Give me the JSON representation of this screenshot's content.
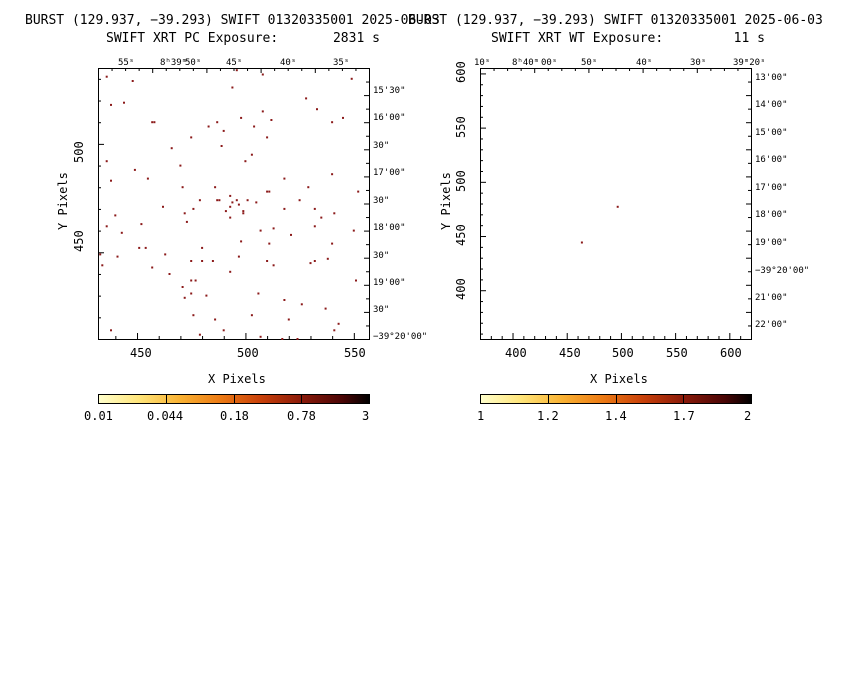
{
  "panels": [
    {
      "title": "BURST (129.937, −39.293) SWIFT 01320335001 2025-06-03",
      "subtitle": "SWIFT XRT PC Exposure:       2831 s",
      "xlabel": "X Pixels",
      "ylabel": "Y Pixels",
      "x_ticks": [
        "450",
        "500",
        "550"
      ],
      "y_ticks": [
        "450",
        "500"
      ],
      "ra_ticks": [
        "55ˢ",
        "8ʰ39ᵐ",
        "45ˢ",
        "40ˢ",
        "35ˢ"
      ],
      "ra_tick_50": "50ˢ",
      "dec_ticks": [
        "15'30\"",
        "16'00\"",
        "30\"",
        "17'00\"",
        "30\"",
        "18'00\"",
        "30\"",
        "19'00\"",
        "30\"",
        "−39°20'00\""
      ],
      "colorbar_ticks": [
        "0.01",
        "0.044",
        "0.18",
        "0.78",
        "3"
      ]
    },
    {
      "title": "BURST (129.937, −39.293) SWIFT 01320335001 2025-06-03",
      "subtitle": "SWIFT XRT WT Exposure:         11 s",
      "xlabel": "X Pixels",
      "ylabel": "Y Pixels",
      "x_ticks": [
        "400",
        "450",
        "500",
        "550",
        "600"
      ],
      "y_ticks": [
        "400",
        "450",
        "500",
        "550",
        "600"
      ],
      "ra_ticks": [
        "10ˢ",
        "8ʰ40ᵐ",
        "00ˢ",
        "50ˢ",
        "40ˢ",
        "30ˢ",
        "39ᵐ20ˢ"
      ],
      "dec_ticks": [
        "13'00\"",
        "14'00\"",
        "15'00\"",
        "16'00\"",
        "17'00\"",
        "18'00\"",
        "19'00\"",
        "−39°20'00\"",
        "21'00\"",
        "22'00\""
      ],
      "colorbar_ticks": [
        "1",
        "1.2",
        "1.4",
        "1.7",
        "2"
      ]
    }
  ],
  "colors": {
    "cmap": [
      "#ffffcc",
      "#ffe57a",
      "#f9b233",
      "#ec7a14",
      "#c8400a",
      "#8a1a0a",
      "#4a0505",
      "#000000"
    ],
    "event": "#8b1a1a"
  },
  "chart_data": [
    {
      "type": "scatter",
      "title": "BURST (129.937, −39.293) SWIFT 01320335001 2025-06-03",
      "subtitle": "SWIFT XRT PC Exposure: 2831 s",
      "xlabel": "X Pixels",
      "ylabel": "Y Pixels",
      "xlim": [
        432,
        557
      ],
      "ylim": [
        410,
        535
      ],
      "colorbar": {
        "scale": "log",
        "range": [
          0.01,
          3
        ],
        "ticks": [
          0.01,
          0.044,
          0.18,
          0.78,
          3
        ]
      },
      "points": [
        [
          436,
          531
        ],
        [
          444,
          519
        ],
        [
          496,
          534
        ],
        [
          508,
          532
        ],
        [
          528,
          521
        ],
        [
          549,
          530
        ],
        [
          545,
          512
        ],
        [
          438,
          518
        ],
        [
          448,
          529
        ],
        [
          494,
          526
        ],
        [
          508,
          515
        ],
        [
          533,
          516
        ],
        [
          457,
          510
        ],
        [
          458,
          510
        ],
        [
          483,
          508
        ],
        [
          490,
          506
        ],
        [
          498,
          512
        ],
        [
          504,
          508
        ],
        [
          512,
          511
        ],
        [
          475,
          503
        ],
        [
          487,
          510
        ],
        [
          540,
          510
        ],
        [
          466,
          498
        ],
        [
          489,
          499
        ],
        [
          503,
          495
        ],
        [
          510,
          503
        ],
        [
          436,
          492
        ],
        [
          449,
          488
        ],
        [
          470,
          490
        ],
        [
          500,
          492
        ],
        [
          518,
          484
        ],
        [
          540,
          486
        ],
        [
          438,
          483
        ],
        [
          455,
          484
        ],
        [
          471,
          480
        ],
        [
          486,
          480
        ],
        [
          510,
          478
        ],
        [
          511,
          478
        ],
        [
          529,
          480
        ],
        [
          552,
          478
        ],
        [
          479,
          474
        ],
        [
          488,
          474
        ],
        [
          487,
          474
        ],
        [
          493,
          476
        ],
        [
          496,
          474
        ],
        [
          501,
          474
        ],
        [
          497,
          472
        ],
        [
          494,
          473
        ],
        [
          493,
          471
        ],
        [
          505,
          473
        ],
        [
          525,
          474
        ],
        [
          462,
          471
        ],
        [
          476,
          470
        ],
        [
          491,
          469
        ],
        [
          499,
          469
        ],
        [
          518,
          470
        ],
        [
          532,
          470
        ],
        [
          440,
          467
        ],
        [
          472,
          468
        ],
        [
          493,
          466
        ],
        [
          499,
          468
        ],
        [
          535,
          466
        ],
        [
          541,
          468
        ],
        [
          473,
          464
        ],
        [
          436,
          462
        ],
        [
          452,
          463
        ],
        [
          507,
          460
        ],
        [
          513,
          461
        ],
        [
          532,
          462
        ],
        [
          550,
          460
        ],
        [
          443,
          459
        ],
        [
          521,
          458
        ],
        [
          451,
          452
        ],
        [
          454,
          452
        ],
        [
          480,
          452
        ],
        [
          498,
          455
        ],
        [
          511,
          454
        ],
        [
          540,
          454
        ],
        [
          433,
          449
        ],
        [
          441,
          448
        ],
        [
          463,
          449
        ],
        [
          497,
          448
        ],
        [
          532,
          446
        ],
        [
          538,
          447
        ],
        [
          475,
          446
        ],
        [
          480,
          446
        ],
        [
          485,
          446
        ],
        [
          510,
          446
        ],
        [
          513,
          444
        ],
        [
          434,
          444
        ],
        [
          457,
          443
        ],
        [
          475,
          437
        ],
        [
          477,
          437
        ],
        [
          493,
          441
        ],
        [
          530,
          445
        ],
        [
          551,
          437
        ],
        [
          465,
          440
        ],
        [
          471,
          434
        ],
        [
          472,
          429
        ],
        [
          475,
          431
        ],
        [
          482,
          430
        ],
        [
          506,
          431
        ],
        [
          518,
          428
        ],
        [
          476,
          421
        ],
        [
          486,
          419
        ],
        [
          503,
          421
        ],
        [
          520,
          419
        ],
        [
          526,
          426
        ],
        [
          537,
          424
        ],
        [
          543,
          417
        ],
        [
          438,
          414
        ],
        [
          479,
          412
        ],
        [
          490,
          414
        ],
        [
          507,
          411
        ],
        [
          517,
          410
        ],
        [
          524,
          410
        ],
        [
          541,
          414
        ]
      ]
    },
    {
      "type": "scatter",
      "title": "BURST (129.937, −39.293) SWIFT 01320335001 2025-06-03",
      "subtitle": "SWIFT XRT WT Exposure: 11 s",
      "xlabel": "X Pixels",
      "ylabel": "Y Pixels",
      "xlim": [
        370,
        620
      ],
      "ylim": [
        355,
        605
      ],
      "colorbar": {
        "scale": "linear",
        "range": [
          1,
          2
        ],
        "ticks": [
          1,
          1.2,
          1.4,
          1.7,
          2
        ]
      },
      "points": [
        [
          497,
          477
        ],
        [
          464,
          444
        ]
      ]
    }
  ]
}
